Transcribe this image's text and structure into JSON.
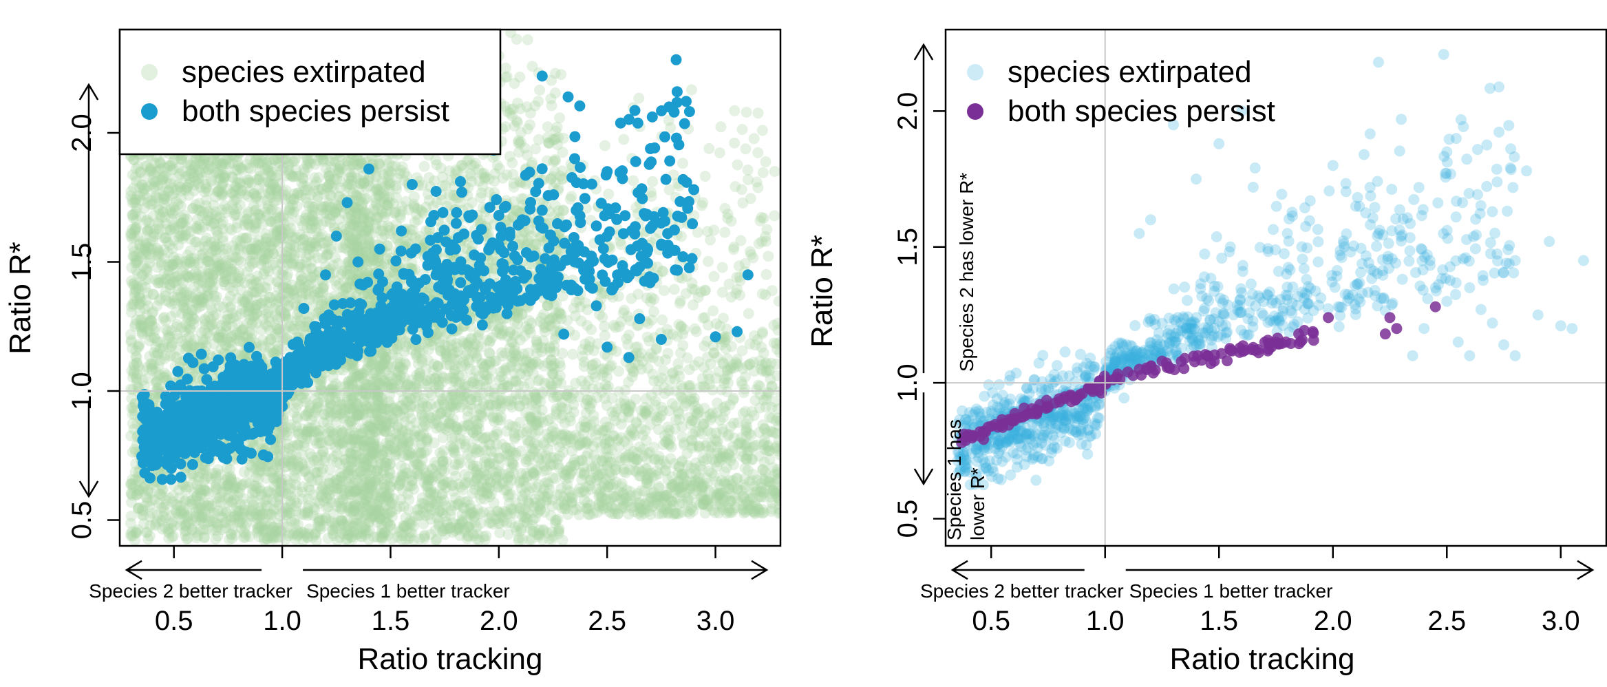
{
  "chart_data": [
    {
      "type": "scatter",
      "xlabel": "Ratio tracking",
      "ylabel": "Ratio R*",
      "xlim": [
        0.25,
        3.3
      ],
      "ylim": [
        0.4,
        2.4
      ],
      "xticks": [
        0.5,
        1.0,
        1.5,
        2.0,
        2.5,
        3.0
      ],
      "xtick_labels": [
        "0.5",
        "1.0",
        "1.5",
        "2.0",
        "2.5",
        "3.0"
      ],
      "yticks": [
        0.5,
        1.0,
        1.5,
        2.0
      ],
      "ytick_labels": [
        "0.5",
        "1.0",
        "1.5",
        "2.0"
      ],
      "reference_lines": {
        "x": 1.0,
        "y": 1.0
      },
      "legend": {
        "placement": "top-left",
        "boxed": true,
        "entries": [
          {
            "label": "species extirpated",
            "color": "#a8d5a2"
          },
          {
            "label": "both species persist",
            "color": "#1a9ccf"
          }
        ]
      },
      "arrow_labels": {
        "x_left": "Species 2 better tracker",
        "x_right": "Species 1 better tracker",
        "y_up": "",
        "y_down": ""
      },
      "series": [
        {
          "name": "species extirpated",
          "color": "#a8d5a2",
          "opacity": 0.3,
          "generator": "dense-cloud",
          "x_range": [
            0.3,
            3.3
          ],
          "y_range": [
            0.42,
            2.4
          ],
          "note_count": 9000
        },
        {
          "name": "both species persist",
          "color": "#1a9ccf",
          "opacity": 1.0,
          "points": [
            [
              2.2,
              2.22
            ],
            [
              2.35,
              1.9
            ],
            [
              2.5,
              1.85
            ],
            [
              2.9,
              1.78
            ],
            [
              1.4,
              1.86
            ],
            [
              1.3,
              1.73
            ],
            [
              1.6,
              1.8
            ],
            [
              2.0,
              1.68
            ],
            [
              2.2,
              1.7
            ],
            [
              2.7,
              1.63
            ],
            [
              3.15,
              1.45
            ],
            [
              2.85,
              1.52
            ],
            [
              2.65,
              1.48
            ],
            [
              3.1,
              1.23
            ],
            [
              3.0,
              1.21
            ],
            [
              2.75,
              1.2
            ],
            [
              2.6,
              1.13
            ],
            [
              2.65,
              1.28
            ],
            [
              2.5,
              1.17
            ],
            [
              2.3,
              1.22
            ],
            [
              2.45,
              1.33
            ],
            [
              2.1,
              1.35
            ],
            [
              1.9,
              1.42
            ],
            [
              1.8,
              1.55
            ],
            [
              1.7,
              1.68
            ],
            [
              1.55,
              1.62
            ],
            [
              1.45,
              1.55
            ],
            [
              1.35,
              1.5
            ],
            [
              1.25,
              1.6
            ],
            [
              1.2,
              1.45
            ],
            [
              1.1,
              1.32
            ],
            [
              1.15,
              1.25
            ],
            [
              1.05,
              1.18
            ],
            [
              2.05,
              1.6
            ],
            [
              2.35,
              1.5
            ],
            [
              2.55,
              1.42
            ]
          ],
          "generator": "trend-band",
          "trend": "y = 1 + 0.55*(x-1)^0.6 for x > 1; y = 0.8 + 0.2*(x-0.35)/0.65 for x < 1",
          "note_count": 1400
        }
      ]
    },
    {
      "type": "scatter",
      "xlabel": "Ratio tracking",
      "ylabel": "Ratio R*",
      "xlim": [
        0.3,
        3.2
      ],
      "ylim": [
        0.4,
        2.3
      ],
      "xticks": [
        0.5,
        1.0,
        1.5,
        2.0,
        2.5,
        3.0
      ],
      "xtick_labels": [
        "0.5",
        "1.0",
        "1.5",
        "2.0",
        "2.5",
        "3.0"
      ],
      "yticks": [
        0.5,
        1.0,
        1.5,
        2.0
      ],
      "ytick_labels": [
        "0.5",
        "1.0",
        "1.5",
        "2.0"
      ],
      "reference_lines": {
        "x": 1.0,
        "y": 1.0
      },
      "legend": {
        "placement": "top-left",
        "boxed": false,
        "entries": [
          {
            "label": "species extirpated",
            "color": "#8fd3ee"
          },
          {
            "label": "both species persist",
            "color": "#7a2f96"
          }
        ]
      },
      "arrow_labels": {
        "x_left": "Species 2 better tracker",
        "x_right": "Species 1 better tracker",
        "y_up": "Species 2 has lower R*",
        "y_down_line1": "Species 1 has",
        "y_down_line2": "lower R*"
      },
      "series": [
        {
          "name": "species extirpated",
          "color": "#3bb0dd",
          "opacity": 0.28,
          "points": [
            [
              2.2,
              2.18
            ],
            [
              1.6,
              2.0
            ],
            [
              1.3,
              1.95
            ],
            [
              1.5,
              1.88
            ],
            [
              2.0,
              1.8
            ],
            [
              2.85,
              1.78
            ],
            [
              2.5,
              1.85
            ],
            [
              2.3,
              1.97
            ],
            [
              1.4,
              1.75
            ],
            [
              1.65,
              1.72
            ],
            [
              1.9,
              1.67
            ],
            [
              2.1,
              1.65
            ],
            [
              2.7,
              1.63
            ],
            [
              3.1,
              1.45
            ],
            [
              2.8,
              1.45
            ],
            [
              2.6,
              1.35
            ],
            [
              2.95,
              1.52
            ],
            [
              3.0,
              1.21
            ],
            [
              3.05,
              1.2
            ],
            [
              2.9,
              1.25
            ],
            [
              2.7,
              1.22
            ],
            [
              2.55,
              1.15
            ],
            [
              2.75,
              1.14
            ],
            [
              2.65,
              1.27
            ],
            [
              1.8,
              1.55
            ],
            [
              2.2,
              1.55
            ],
            [
              2.05,
              1.5
            ],
            [
              1.55,
              1.5
            ],
            [
              1.2,
              1.6
            ],
            [
              1.15,
              1.55
            ],
            [
              2.4,
              1.2
            ],
            [
              2.45,
              1.35
            ],
            [
              2.5,
              1.3
            ],
            [
              2.35,
              1.1
            ],
            [
              2.6,
              1.1
            ],
            [
              2.8,
              1.1
            ]
          ],
          "generator": "trend-band",
          "trend": "y = 1 + 0.45*(x-1)^0.7 for x > 1; y = 0.82 + 0.18*(x-0.35)/0.65 for x < 1",
          "note_count": 1100
        },
        {
          "name": "both species persist",
          "color": "#7a2f96",
          "opacity": 0.85,
          "points": [
            [
              1.98,
              1.24
            ],
            [
              2.45,
              1.28
            ],
            [
              2.25,
              1.24
            ],
            [
              2.28,
              1.2
            ],
            [
              2.23,
              1.18
            ],
            [
              1.85,
              1.18
            ],
            [
              1.75,
              1.15
            ],
            [
              1.65,
              1.13
            ],
            [
              1.55,
              1.12
            ],
            [
              1.45,
              1.1
            ],
            [
              1.35,
              1.09
            ],
            [
              1.25,
              1.08
            ],
            [
              1.2,
              1.06
            ],
            [
              1.15,
              1.05
            ],
            [
              1.1,
              1.04
            ],
            [
              1.05,
              1.02
            ],
            [
              1.0,
              1.0
            ],
            [
              0.95,
              0.98
            ],
            [
              0.9,
              0.96
            ],
            [
              0.85,
              0.95
            ],
            [
              0.8,
              0.93
            ],
            [
              0.75,
              0.91
            ],
            [
              0.7,
              0.89
            ],
            [
              0.65,
              0.88
            ],
            [
              0.6,
              0.86
            ],
            [
              0.55,
              0.85
            ],
            [
              0.5,
              0.84
            ],
            [
              0.45,
              0.82
            ],
            [
              0.4,
              0.81
            ],
            [
              0.37,
              0.78
            ]
          ],
          "generator": "trend-line",
          "note_count": 120
        }
      ]
    }
  ]
}
